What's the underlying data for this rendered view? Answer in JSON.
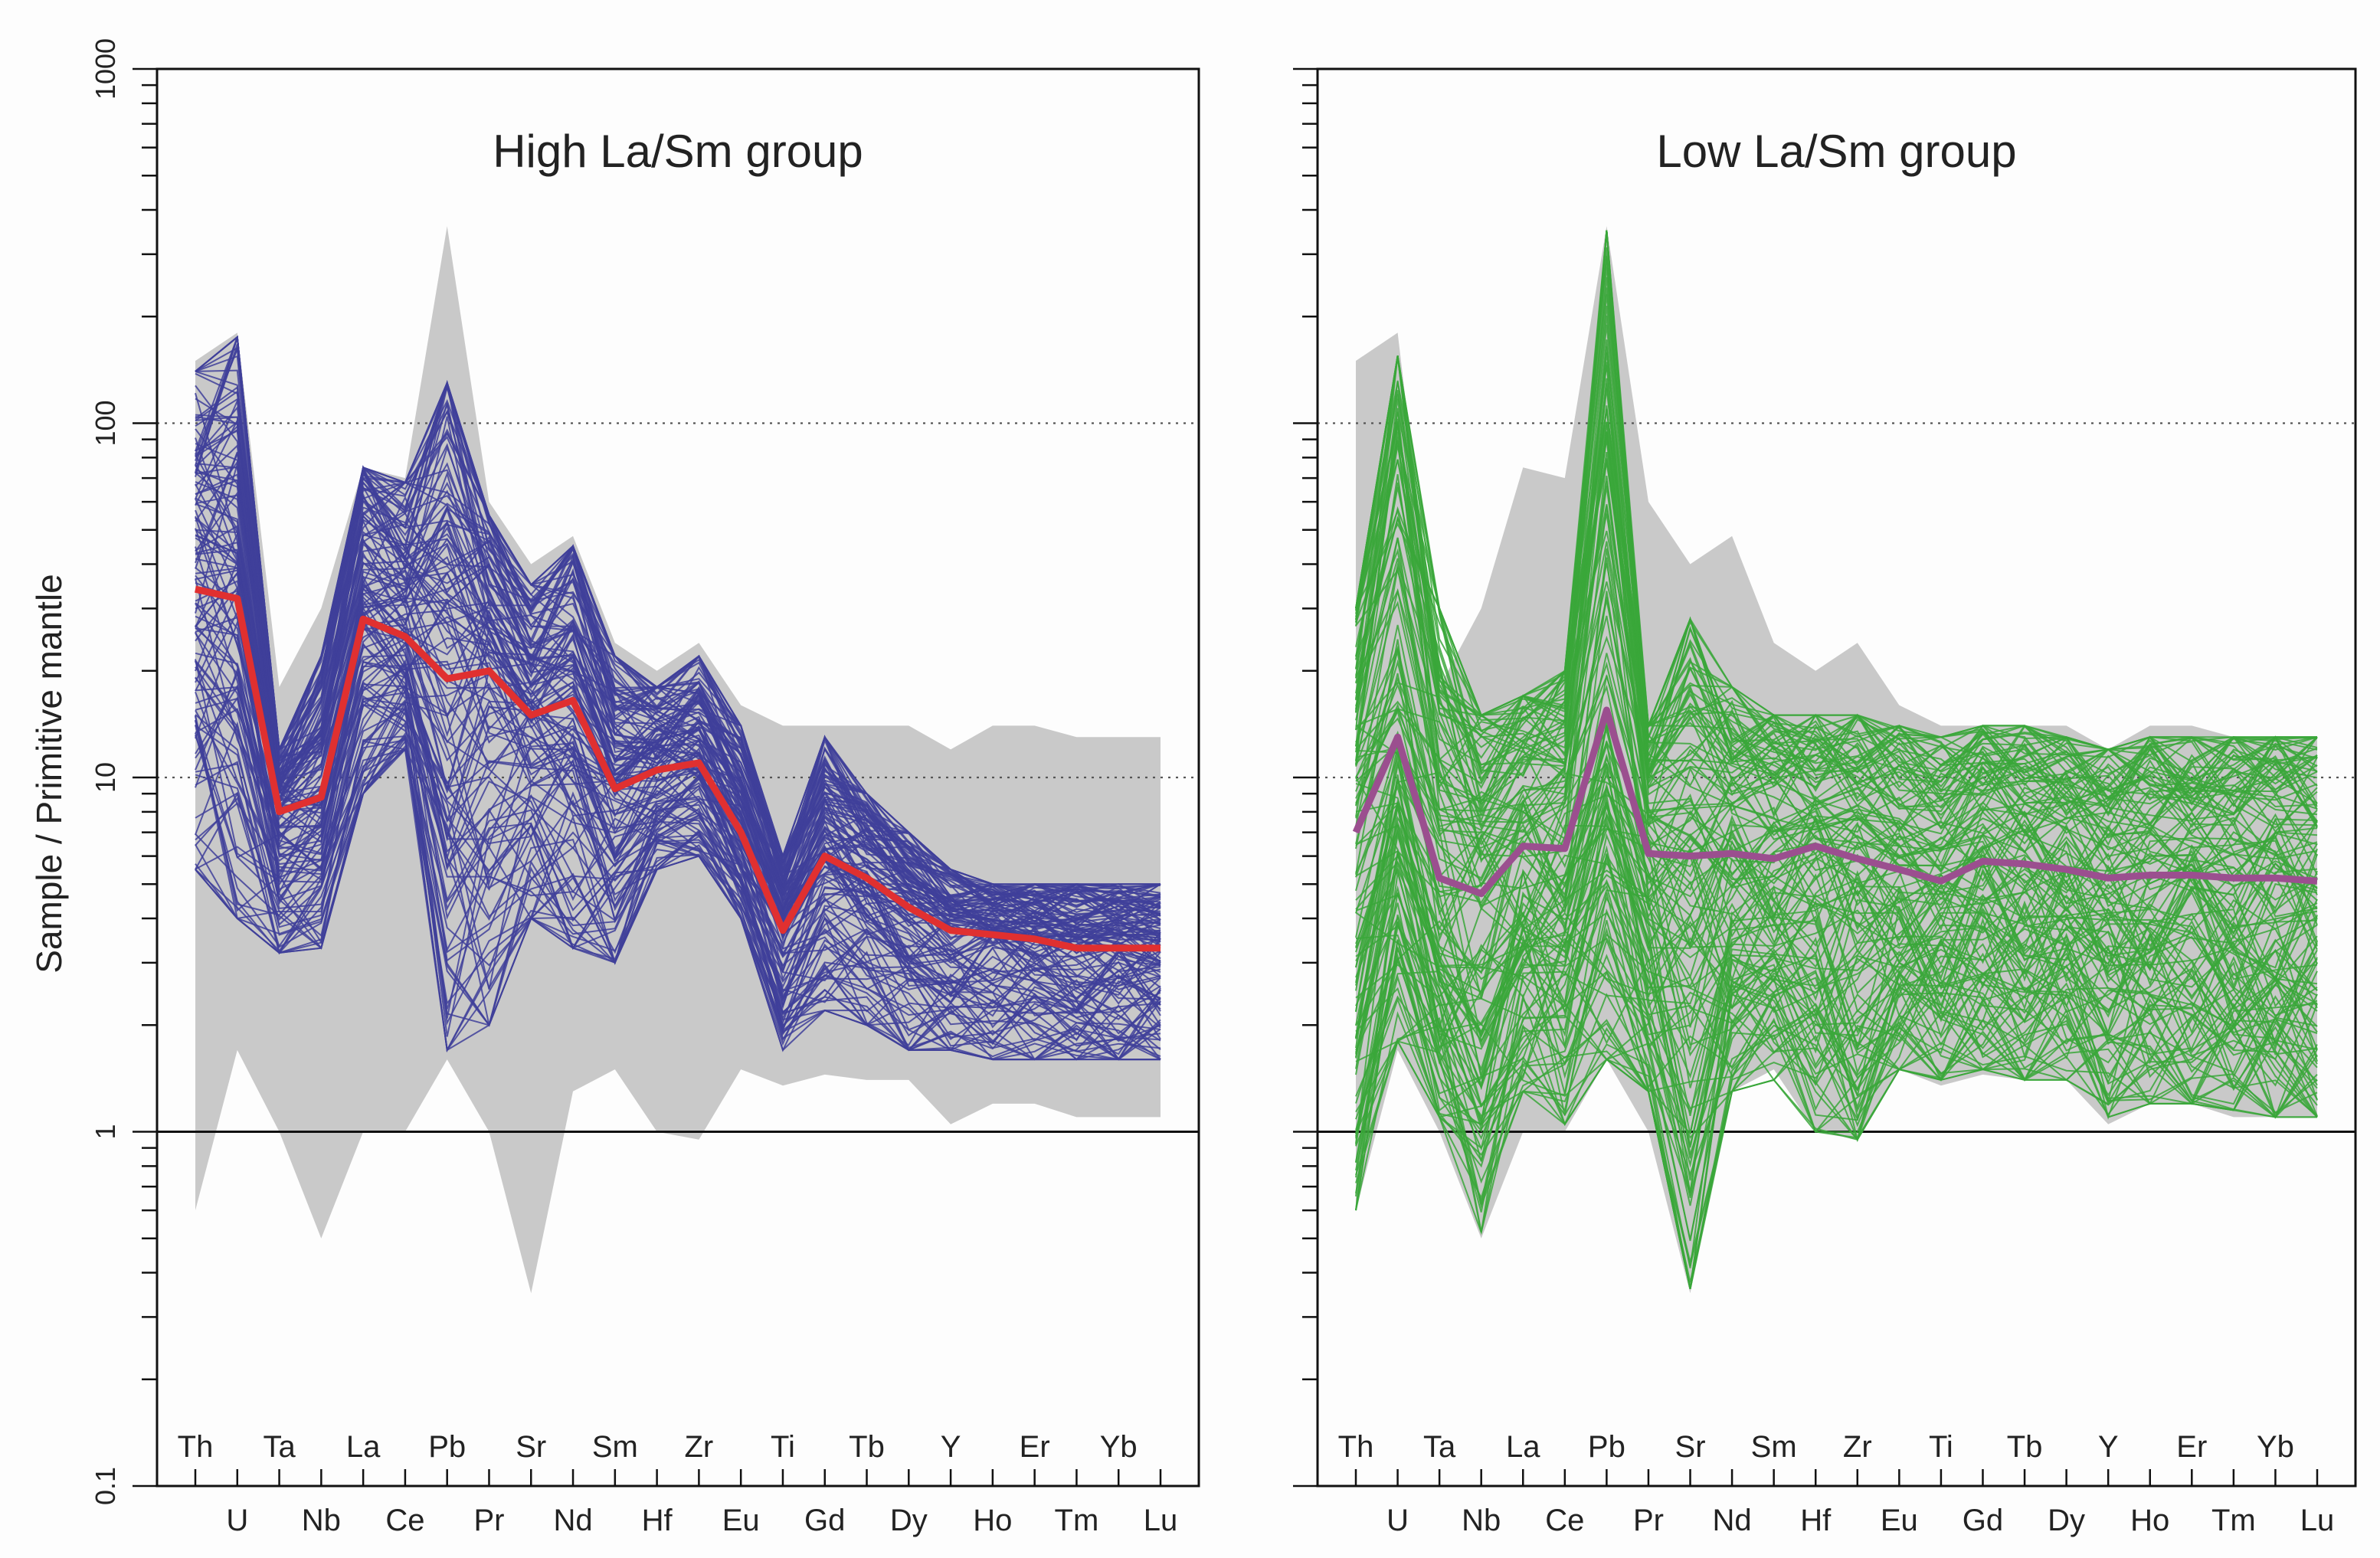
{
  "chart_data": [
    {
      "type": "line",
      "title": "High La/Sm group",
      "ylabel": "Sample / Primitive mantle",
      "yscale": "log",
      "ylim": [
        0.1,
        1000
      ],
      "yticks": [
        "0.1",
        "1",
        "10",
        "100",
        "1000"
      ],
      "x": [
        "Th",
        "U",
        "Ta",
        "Nb",
        "La",
        "Ce",
        "Pb",
        "Pr",
        "Sr",
        "Nd",
        "Sm",
        "Hf",
        "Zr",
        "Eu",
        "Ti",
        "Gd",
        "Tb",
        "Dy",
        "Y",
        "Ho",
        "Er",
        "Tm",
        "Yb",
        "Lu"
      ],
      "reference_lines": [
        1,
        10,
        100
      ],
      "envelope_color": "#c9c9c9",
      "sample_color": "#3f3f9a",
      "median_color": "#e03030",
      "envelope_max": [
        150,
        180,
        18,
        30,
        75,
        70,
        360,
        60,
        40,
        48,
        24,
        20,
        24,
        16,
        14,
        14,
        14,
        14,
        12,
        14,
        14,
        13,
        13,
        13
      ],
      "envelope_min": [
        0.6,
        1.7,
        1.0,
        0.5,
        1.0,
        1.0,
        1.6,
        1.0,
        0.35,
        1.3,
        1.5,
        1.0,
        0.95,
        1.5,
        1.35,
        1.45,
        1.4,
        1.4,
        1.05,
        1.2,
        1.2,
        1.1,
        1.1,
        1.1
      ],
      "sample_bounds": {
        "max": [
          140,
          175,
          12,
          22,
          75,
          68,
          130,
          55,
          35,
          45,
          22,
          18,
          22,
          14,
          6,
          13,
          9,
          7,
          5.5,
          5,
          5,
          5,
          5,
          5
        ],
        "min": [
          5.5,
          4,
          3.2,
          3.3,
          9,
          12,
          1.7,
          2,
          4,
          3.3,
          3,
          5.5,
          6,
          4,
          1.7,
          2.2,
          2,
          1.7,
          1.7,
          1.6,
          1.6,
          1.6,
          1.6,
          1.6
        ]
      },
      "series": [
        {
          "values": [
            34,
            32,
            8,
            8.8,
            28,
            25,
            19,
            20,
            15,
            16.5,
            9.3,
            10.5,
            11,
            7,
            3.7,
            6,
            5.2,
            4.3,
            3.7,
            3.6,
            3.5,
            3.3,
            3.3,
            3.3
          ]
        }
      ]
    },
    {
      "type": "line",
      "title": "Low La/Sm group",
      "yscale": "log",
      "ylim": [
        0.1,
        1000
      ],
      "x": [
        "Th",
        "U",
        "Ta",
        "Nb",
        "La",
        "Ce",
        "Pb",
        "Pr",
        "Sr",
        "Nd",
        "Sm",
        "Hf",
        "Zr",
        "Eu",
        "Ti",
        "Gd",
        "Tb",
        "Dy",
        "Y",
        "Ho",
        "Er",
        "Tm",
        "Yb",
        "Lu"
      ],
      "reference_lines": [
        1,
        10,
        100
      ],
      "envelope_color": "#c9c9c9",
      "sample_color": "#3aa73a",
      "median_color": "#9b4f8f",
      "envelope_max": [
        150,
        180,
        18,
        30,
        75,
        70,
        360,
        60,
        40,
        48,
        24,
        20,
        24,
        16,
        14,
        14,
        14,
        14,
        12,
        14,
        14,
        13,
        13,
        13
      ],
      "envelope_min": [
        0.6,
        1.7,
        1.0,
        0.5,
        1.0,
        1.0,
        1.6,
        1.0,
        0.35,
        1.3,
        1.5,
        1.0,
        0.95,
        1.5,
        1.35,
        1.45,
        1.4,
        1.4,
        1.05,
        1.2,
        1.2,
        1.1,
        1.1,
        1.1
      ],
      "sample_bounds": {
        "max": [
          30,
          155,
          30,
          15,
          17,
          20,
          350,
          14,
          28,
          18,
          15,
          15,
          15,
          14,
          13,
          14,
          14,
          13,
          12,
          13,
          13,
          13,
          13,
          13
        ],
        "min": [
          0.6,
          1.8,
          1.1,
          0.52,
          1.3,
          1.05,
          1.6,
          1.3,
          0.36,
          1.3,
          1.4,
          1.0,
          0.95,
          1.5,
          1.4,
          1.5,
          1.4,
          1.4,
          1.1,
          1.2,
          1.2,
          1.15,
          1.1,
          1.1
        ]
      },
      "series": [
        {
          "values": [
            7,
            13,
            5.2,
            4.7,
            6.4,
            6.3,
            15.5,
            6.1,
            6,
            6.1,
            5.9,
            6.4,
            5.9,
            5.5,
            5.1,
            5.8,
            5.7,
            5.5,
            5.2,
            5.3,
            5.3,
            5.2,
            5.2,
            5.1
          ]
        }
      ]
    }
  ]
}
